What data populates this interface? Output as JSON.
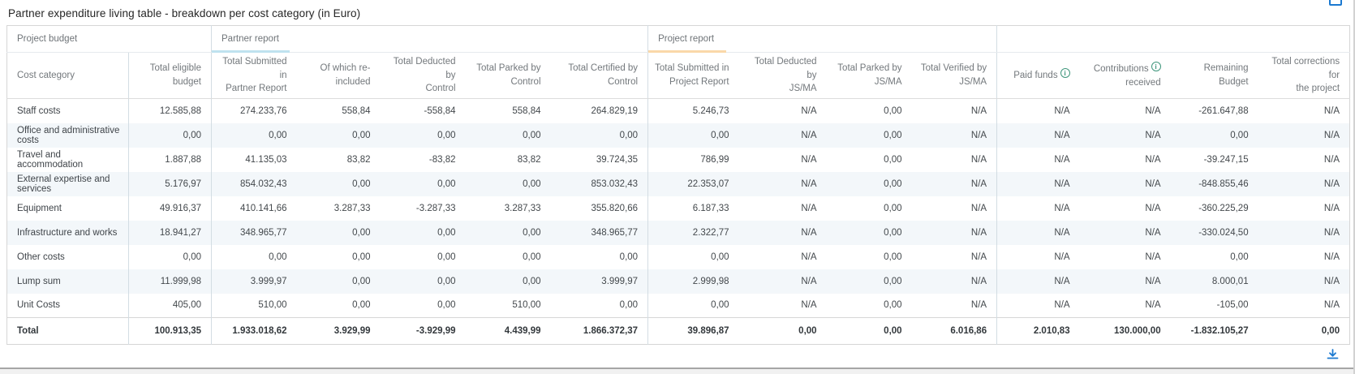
{
  "page": {
    "title": "Partner expenditure living table - breakdown per cost category (in Euro)"
  },
  "colors": {
    "partner_report_accent": "#bfe2ef",
    "project_report_accent": "#fad8a9",
    "icon_blue": "#1b79d0",
    "info_green": "#3f967c",
    "zebra_stripe": "#f3f7fa"
  },
  "table": {
    "groups": [
      {
        "label": "Project budget",
        "span": 2,
        "accent": ""
      },
      {
        "label": "Partner report",
        "span": 5,
        "accent": "#bfe2ef"
      },
      {
        "label": "Project report",
        "span": 4,
        "accent": "#fad8a9"
      },
      {
        "label": "",
        "span": 4,
        "accent": ""
      }
    ],
    "columns": [
      {
        "lines": [
          "Cost category"
        ]
      },
      {
        "lines": [
          "Total eligible budget"
        ]
      },
      {
        "lines": [
          "Total Submitted in",
          "Partner Report"
        ]
      },
      {
        "lines": [
          "Of which re-included"
        ]
      },
      {
        "lines": [
          "Total Deducted by",
          "Control"
        ]
      },
      {
        "lines": [
          "Total Parked by",
          "Control"
        ]
      },
      {
        "lines": [
          "Total Certified by",
          "Control"
        ]
      },
      {
        "lines": [
          "Total Submitted in",
          "Project Report"
        ]
      },
      {
        "lines": [
          "Total Deducted by",
          "JS/MA"
        ]
      },
      {
        "lines": [
          "Total Parked by",
          "JS/MA"
        ]
      },
      {
        "lines": [
          "Total Verified by",
          "JS/MA"
        ]
      },
      {
        "lines": [
          "Paid funds"
        ],
        "info": true,
        "info_line": 0
      },
      {
        "lines": [
          "Contributions",
          "received"
        ],
        "info": true,
        "info_line": 0
      },
      {
        "lines": [
          "Remaining Budget"
        ]
      },
      {
        "lines": [
          "Total corrections for",
          "the project"
        ]
      }
    ],
    "rows": [
      {
        "label": "Staff costs",
        "values": [
          "12.585,88",
          "274.233,76",
          "558,84",
          "-558,84",
          "558,84",
          "264.829,19",
          "5.246,73",
          "N/A",
          "0,00",
          "N/A",
          "N/A",
          "N/A",
          "-261.647,88",
          "N/A"
        ]
      },
      {
        "label": "Office and administrative costs",
        "values": [
          "0,00",
          "0,00",
          "0,00",
          "0,00",
          "0,00",
          "0,00",
          "0,00",
          "N/A",
          "0,00",
          "N/A",
          "N/A",
          "N/A",
          "0,00",
          "N/A"
        ]
      },
      {
        "label": "Travel and accommodation",
        "values": [
          "1.887,88",
          "41.135,03",
          "83,82",
          "-83,82",
          "83,82",
          "39.724,35",
          "786,99",
          "N/A",
          "0,00",
          "N/A",
          "N/A",
          "N/A",
          "-39.247,15",
          "N/A"
        ]
      },
      {
        "label": "External expertise and services",
        "values": [
          "5.176,97",
          "854.032,43",
          "0,00",
          "0,00",
          "0,00",
          "853.032,43",
          "22.353,07",
          "N/A",
          "0,00",
          "N/A",
          "N/A",
          "N/A",
          "-848.855,46",
          "N/A"
        ]
      },
      {
        "label": "Equipment",
        "values": [
          "49.916,37",
          "410.141,66",
          "3.287,33",
          "-3.287,33",
          "3.287,33",
          "355.820,66",
          "6.187,33",
          "N/A",
          "0,00",
          "N/A",
          "N/A",
          "N/A",
          "-360.225,29",
          "N/A"
        ]
      },
      {
        "label": "Infrastructure and works",
        "values": [
          "18.941,27",
          "348.965,77",
          "0,00",
          "0,00",
          "0,00",
          "348.965,77",
          "2.322,77",
          "N/A",
          "0,00",
          "N/A",
          "N/A",
          "N/A",
          "-330.024,50",
          "N/A"
        ]
      },
      {
        "label": "Other costs",
        "values": [
          "0,00",
          "0,00",
          "0,00",
          "0,00",
          "0,00",
          "0,00",
          "0,00",
          "N/A",
          "0,00",
          "N/A",
          "N/A",
          "N/A",
          "0,00",
          "N/A"
        ]
      },
      {
        "label": "Lump sum",
        "values": [
          "11.999,98",
          "3.999,97",
          "0,00",
          "0,00",
          "0,00",
          "3.999,97",
          "2.999,98",
          "N/A",
          "0,00",
          "N/A",
          "N/A",
          "N/A",
          "8.000,01",
          "N/A"
        ]
      },
      {
        "label": "Unit Costs",
        "values": [
          "405,00",
          "510,00",
          "0,00",
          "0,00",
          "510,00",
          "0,00",
          "0,00",
          "N/A",
          "0,00",
          "N/A",
          "N/A",
          "N/A",
          "-105,00",
          "N/A"
        ]
      }
    ],
    "total": {
      "label": "Total",
      "values": [
        "100.913,35",
        "1.933.018,62",
        "3.929,99",
        "-3.929,99",
        "4.439,99",
        "1.866.372,37",
        "39.896,87",
        "0,00",
        "0,00",
        "6.016,86",
        "2.010,83",
        "130.000,00",
        "-1.832.105,27",
        "0,00"
      ]
    }
  },
  "icons": {
    "info_glyph": "i"
  }
}
